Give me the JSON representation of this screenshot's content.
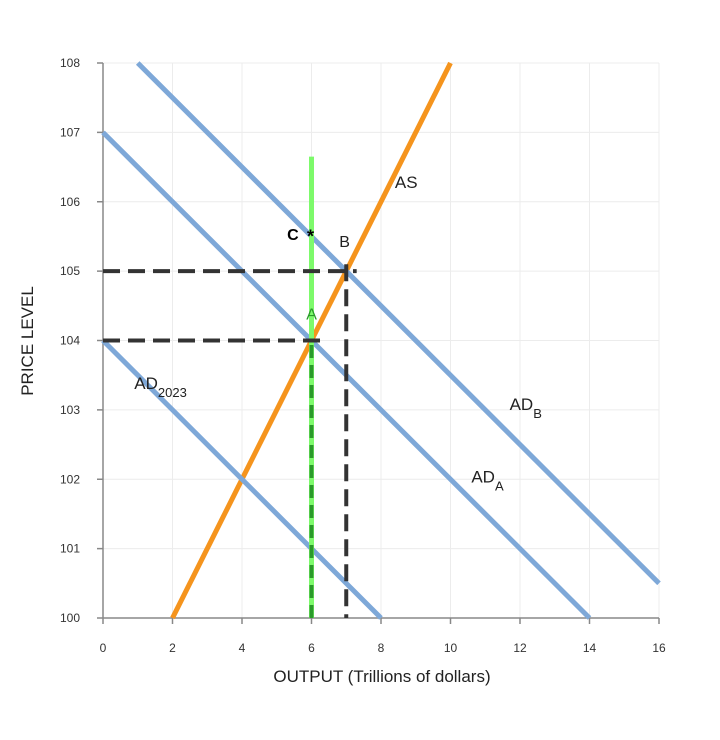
{
  "chart_data": {
    "type": "line",
    "xlabel": "OUTPUT (Trillions of dollars)",
    "ylabel": "PRICE LEVEL",
    "xlim": [
      0,
      16
    ],
    "ylim": [
      100,
      108
    ],
    "xticks": [
      0,
      2,
      4,
      6,
      8,
      10,
      12,
      14,
      16
    ],
    "yticks": [
      100,
      101,
      102,
      103,
      104,
      105,
      106,
      107,
      108
    ],
    "grid": true,
    "series": [
      {
        "name": "AS",
        "label_main": "AS",
        "label_sub": "",
        "color": "#f5941d",
        "x": [
          2,
          10
        ],
        "y": [
          100,
          108
        ],
        "label_at": [
          8.4,
          106.2
        ]
      },
      {
        "name": "AD2023",
        "label_main": "AD",
        "label_sub": "2023",
        "color": "#7ea8d8",
        "x": [
          0,
          8
        ],
        "y": [
          104,
          100
        ],
        "label_at": [
          0.9,
          103.3
        ]
      },
      {
        "name": "ADA",
        "label_main": "AD",
        "label_sub": "A",
        "color": "#7ea8d8",
        "x": [
          0,
          14
        ],
        "y": [
          107,
          100
        ],
        "label_at": [
          10.6,
          101.95
        ]
      },
      {
        "name": "ADB",
        "label_main": "AD",
        "label_sub": "B",
        "color": "#7ea8d8",
        "x": [
          1,
          16
        ],
        "y": [
          108,
          100.5
        ],
        "label_at": [
          11.7,
          103.0
        ]
      }
    ],
    "vertical_line": {
      "x": 6,
      "y_range": [
        100,
        106.65
      ],
      "color": "#7dfa6b",
      "dashed_segment": [
        100,
        104
      ],
      "dashed_color": "#2a9a2a"
    },
    "guide_lines": [
      {
        "from": [
          0,
          105
        ],
        "to": [
          7.3,
          105
        ],
        "color": "#333333"
      },
      {
        "from": [
          7,
          105.1
        ],
        "to": [
          7,
          100
        ],
        "color": "#333333"
      },
      {
        "from": [
          0,
          104
        ],
        "to": [
          6.3,
          104
        ],
        "color": "#333333"
      }
    ],
    "points": [
      {
        "label": "A",
        "x": 6,
        "y": 104,
        "label_color": "#2a9a2a",
        "label_at": [
          5.85,
          104.3
        ],
        "marker": false
      },
      {
        "label": "B",
        "x": 7,
        "y": 105,
        "label_color": "#222222",
        "label_at": [
          6.8,
          105.35
        ],
        "marker": false
      },
      {
        "label": "C",
        "x": 6,
        "y": 105.5,
        "label_color": "#000000",
        "label_at": [
          5.3,
          105.45
        ],
        "marker": true
      }
    ]
  }
}
